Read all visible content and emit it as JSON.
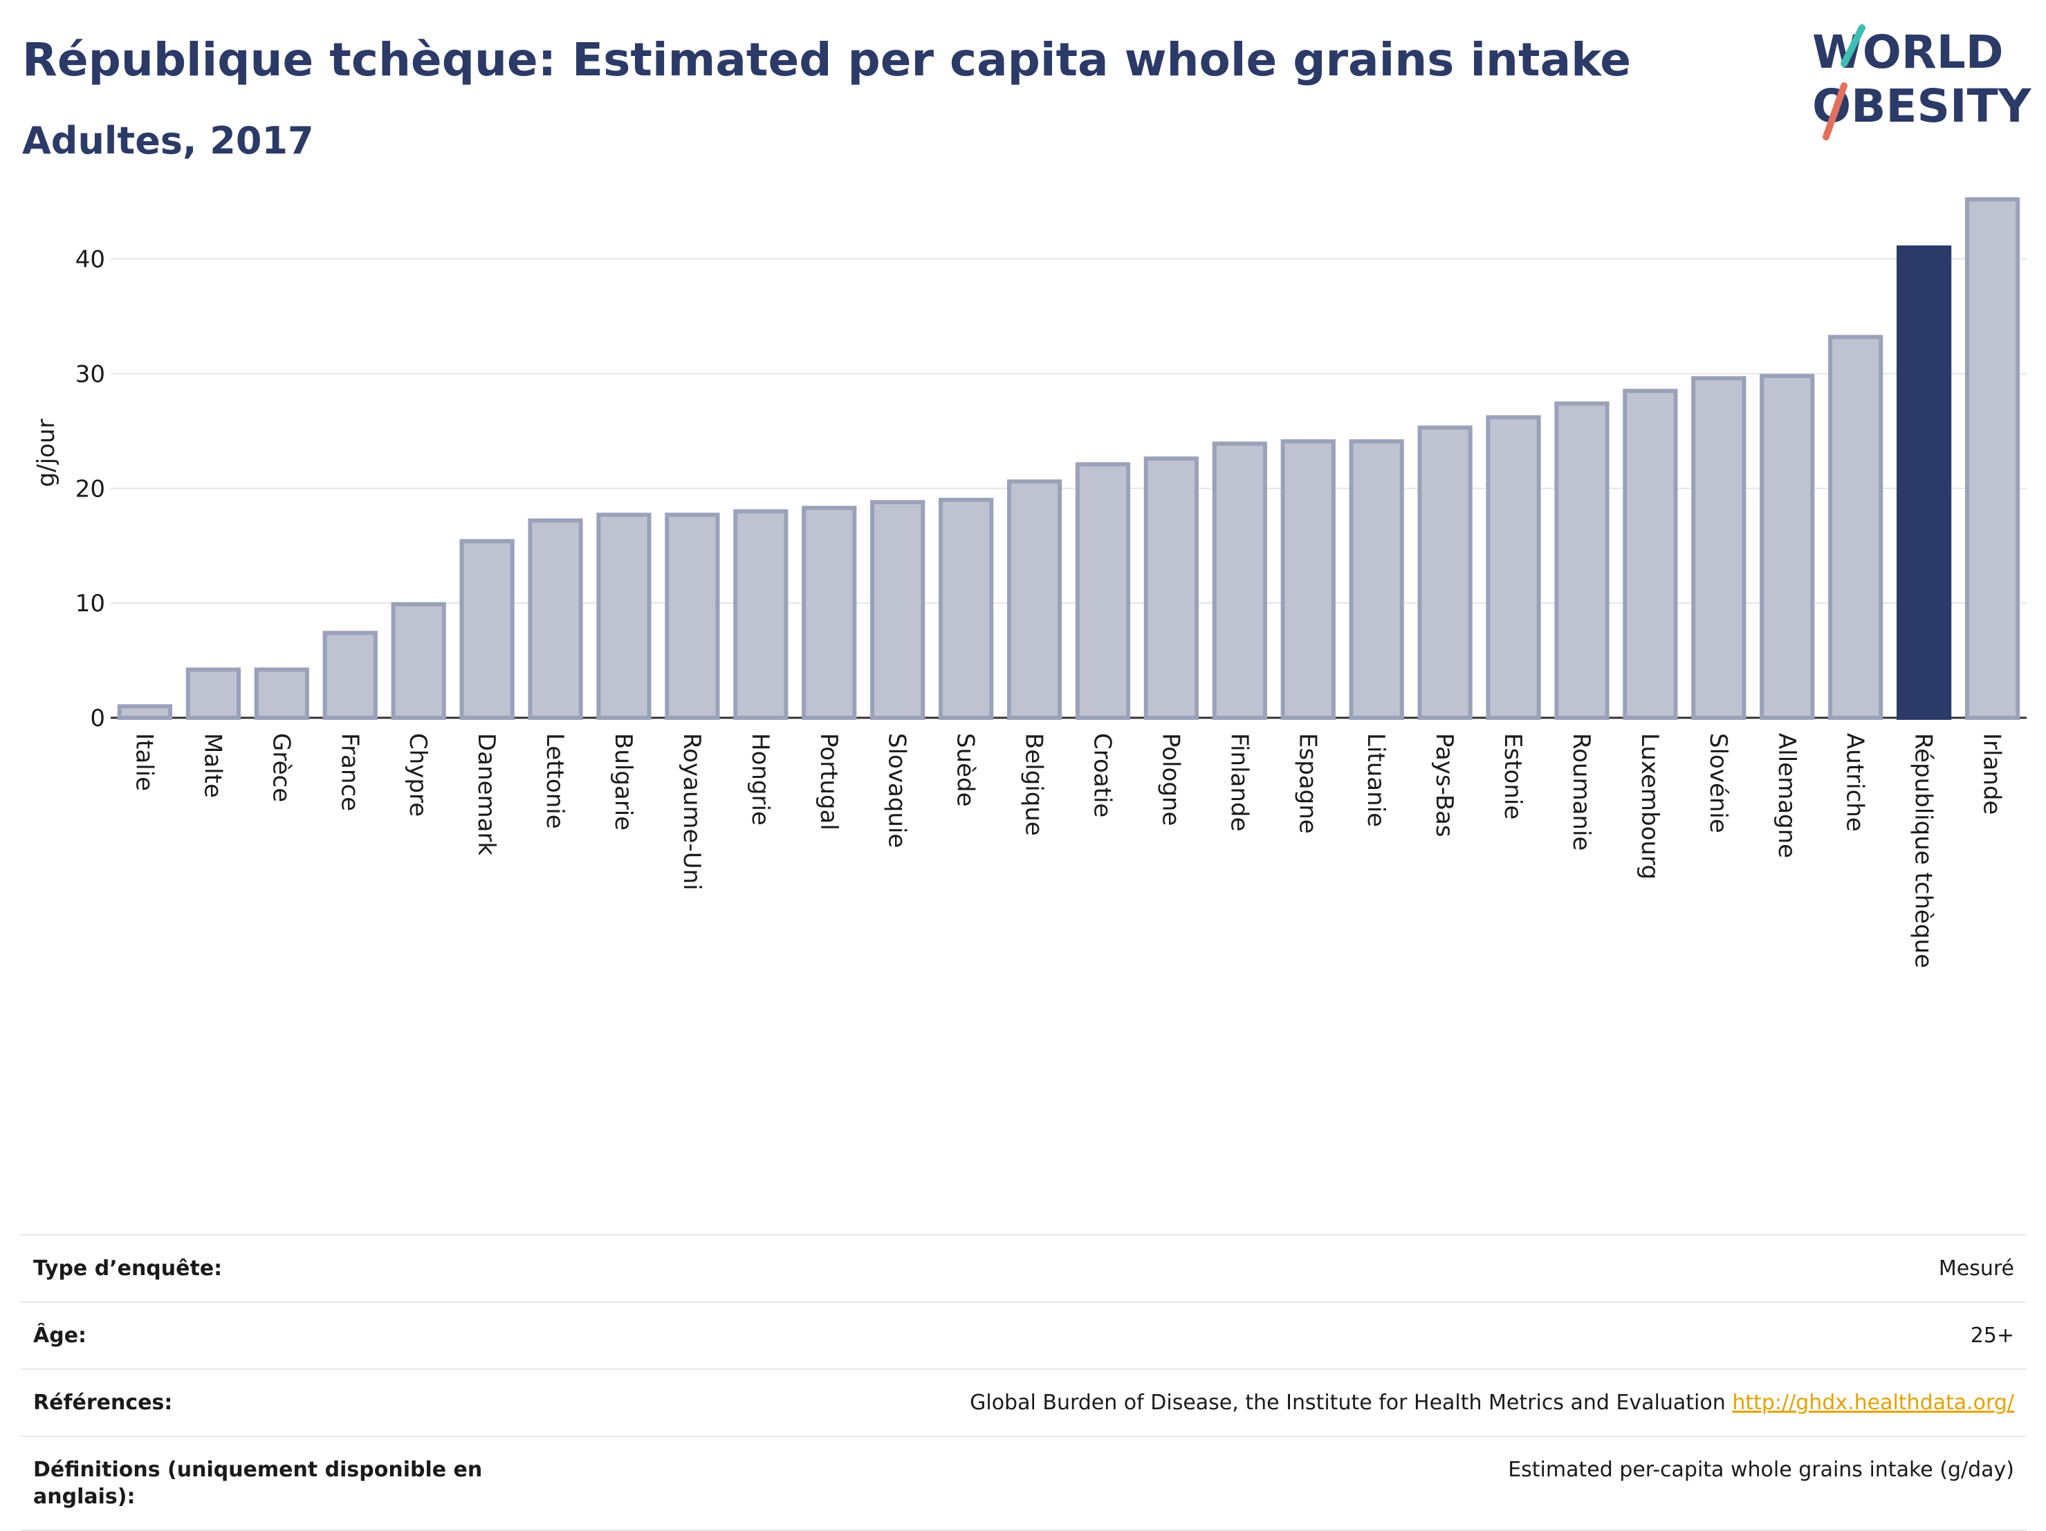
{
  "header": {
    "title": "République tchèque: Estimated per capita whole grains intake",
    "subtitle": "Adultes, 2017"
  },
  "logo": {
    "line1": "WORLD",
    "line2": "OBESITY"
  },
  "chart_data": {
    "type": "bar",
    "ylabel": "g/jour",
    "ylim": [
      0,
      46
    ],
    "yticks": [
      0,
      10,
      20,
      30,
      40
    ],
    "grid": true,
    "highlight": "République tchèque",
    "highlight_color": "#2b3a67",
    "bar_color": "#bfc3d1",
    "bar_outline": "#9aa1b9",
    "categories": [
      "Italie",
      "Malte",
      "Grèce",
      "France",
      "Chypre",
      "Danemark",
      "Lettonie",
      "Bulgarie",
      "Royaume-Uni",
      "Hongrie",
      "Portugal",
      "Slovaquie",
      "Suède",
      "Belgique",
      "Croatie",
      "Pologne",
      "Finlande",
      "Espagne",
      "Lituanie",
      "Pays-Bas",
      "Estonie",
      "Roumanie",
      "Luxembourg",
      "Slovénie",
      "Allemagne",
      "Autriche",
      "République tchèque",
      "Irlande"
    ],
    "values": [
      1.0,
      4.2,
      4.2,
      7.4,
      9.9,
      15.4,
      17.2,
      17.7,
      17.7,
      18.0,
      18.3,
      18.8,
      19.0,
      20.6,
      22.1,
      22.6,
      23.9,
      24.1,
      24.1,
      25.3,
      26.2,
      27.4,
      28.5,
      29.6,
      29.8,
      33.2,
      41.0,
      45.2
    ]
  },
  "info": {
    "survey_type_label": "Type d’enquête:",
    "survey_type_value": "Mesuré",
    "age_label": "Âge:",
    "age_value": "25+",
    "references_label": "Références:",
    "references_value": "Global Burden of Disease, the Institute for Health Metrics and Evaluation",
    "references_link": "http://ghdx.healthdata.org/",
    "definitions_label": "Définitions (uniquement disponible en anglais):",
    "definitions_value": "Estimated per-capita whole grains intake (g/day)"
  }
}
